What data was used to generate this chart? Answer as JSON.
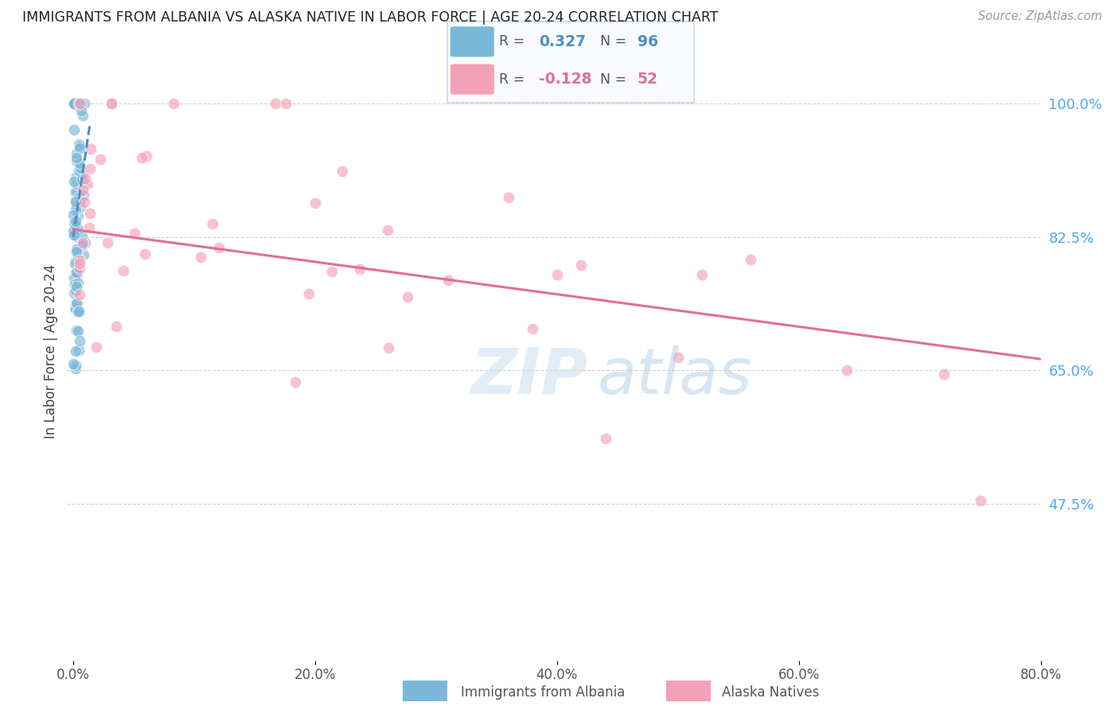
{
  "title": "IMMIGRANTS FROM ALBANIA VS ALASKA NATIVE IN LABOR FORCE | AGE 20-24 CORRELATION CHART",
  "source": "Source: ZipAtlas.com",
  "ylabel": "In Labor Force | Age 20-24",
  "xlim": [
    -0.005,
    0.8
  ],
  "ylim": [
    0.27,
    1.08
  ],
  "xticks": [
    0.0,
    0.2,
    0.4,
    0.6,
    0.8
  ],
  "xtick_labels": [
    "0.0%",
    "20.0%",
    "40.0%",
    "60.0%",
    "80.0%"
  ],
  "yticks": [
    0.475,
    0.65,
    0.825,
    1.0
  ],
  "ytick_labels": [
    "47.5%",
    "65.0%",
    "82.5%",
    "100.0%"
  ],
  "r_albania": 0.327,
  "n_albania": 96,
  "r_alaska": -0.128,
  "n_alaska": 52,
  "blue_color": "#7ab8d9",
  "pink_color": "#f4a0b8",
  "trend_blue": "#4a90c4",
  "trend_pink": "#e07090",
  "background_color": "#ffffff",
  "grid_color": "#cccccc",
  "ytick_color": "#4da6ff",
  "albania_trend_x": [
    0.0,
    0.014
  ],
  "albania_trend_y": [
    0.825,
    0.975
  ],
  "alaska_trend_x": [
    0.0,
    0.8
  ],
  "alaska_trend_y": [
    0.835,
    0.665
  ]
}
